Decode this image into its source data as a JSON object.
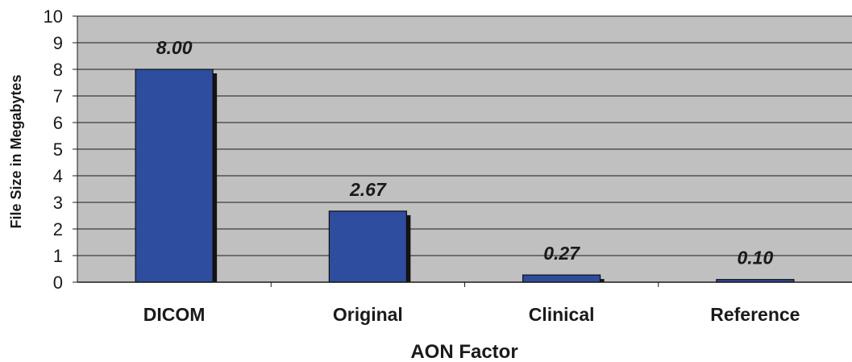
{
  "chart_data": {
    "type": "bar",
    "categories": [
      "DICOM",
      "Original",
      "Clinical",
      "Reference"
    ],
    "values": [
      8.0,
      2.67,
      0.27,
      0.1
    ],
    "value_labels": [
      "8.00",
      "2.67",
      "0.27",
      "0.10"
    ],
    "title": "",
    "xlabel": "AON Factor",
    "ylabel": "File Size in Megabytes",
    "ylim": [
      0,
      10
    ],
    "yticks": [
      0,
      1,
      2,
      3,
      4,
      5,
      6,
      7,
      8,
      9,
      10
    ],
    "grid": true,
    "legend": "none",
    "colors": {
      "bar": "#2e4d9e",
      "bar_shadow": "#141414",
      "plot_background": "#c0c0c0",
      "gridline": "#1a1a1a"
    }
  }
}
